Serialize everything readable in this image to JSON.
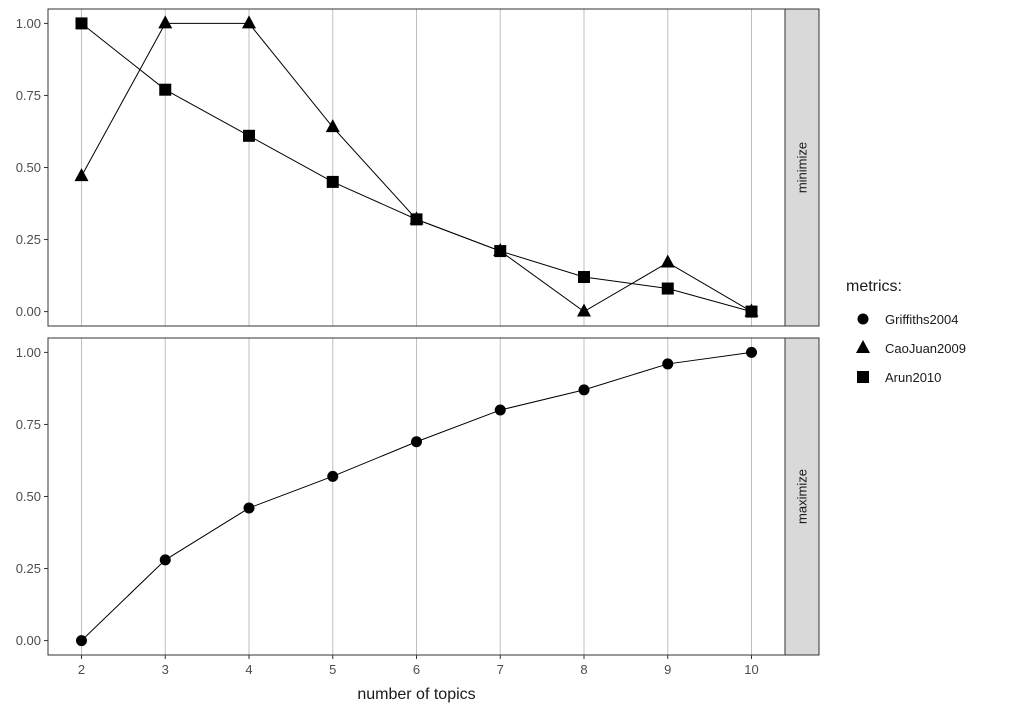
{
  "chart_data": {
    "type": "line",
    "xlabel": "number of topics",
    "x": [
      2,
      3,
      4,
      5,
      6,
      7,
      8,
      9,
      10
    ],
    "x_ticks": [
      "2",
      "3",
      "4",
      "5",
      "6",
      "7",
      "8",
      "9",
      "10"
    ],
    "y_ticks": [
      "0.00",
      "0.25",
      "0.50",
      "0.75",
      "1.00"
    ],
    "ylim": [
      0,
      1
    ],
    "grid": "vertical major lines only",
    "legend": {
      "title": "metrics:",
      "placement": "right",
      "entries": [
        {
          "label": "Griffiths2004",
          "shape": "circle"
        },
        {
          "label": "CaoJuan2009",
          "shape": "triangle"
        },
        {
          "label": "Arun2010",
          "shape": "square"
        }
      ]
    },
    "facets": [
      {
        "strip": "minimize",
        "series": [
          {
            "name": "CaoJuan2009",
            "shape": "triangle",
            "values": [
              0.47,
              1.0,
              1.0,
              0.64,
              0.32,
              0.21,
              0.0,
              0.17,
              0.0
            ]
          },
          {
            "name": "Arun2010",
            "shape": "square",
            "values": [
              1.0,
              0.77,
              0.61,
              0.45,
              0.32,
              0.21,
              0.12,
              0.08,
              0.0
            ]
          }
        ]
      },
      {
        "strip": "maximize",
        "series": [
          {
            "name": "Griffiths2004",
            "shape": "circle",
            "values": [
              0.0,
              0.28,
              0.46,
              0.57,
              0.69,
              0.8,
              0.87,
              0.96,
              1.0
            ]
          }
        ]
      }
    ]
  },
  "colors": {
    "line": "#000000",
    "grid": "#bfbfbf",
    "panel_border": "#333333",
    "strip_fill": "#d9d9d9",
    "tick_text": "#4d4d4d"
  }
}
